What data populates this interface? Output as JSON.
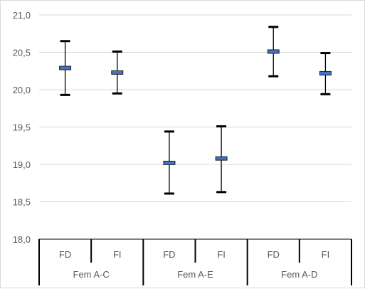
{
  "chart_data": {
    "type": "error-bar",
    "title": "",
    "xlabel": "",
    "ylabel": "",
    "ylim": [
      18.0,
      21.0
    ],
    "ytick_labels": [
      "18,0",
      "18,5",
      "19,0",
      "19,5",
      "20,0",
      "20,5",
      "21,0"
    ],
    "grid": true,
    "legend": "none",
    "groups": [
      {
        "label": "Fem A-C",
        "items": [
          {
            "label": "FD",
            "mean": 20.29,
            "low": 19.93,
            "high": 20.65
          },
          {
            "label": "FI",
            "mean": 20.23,
            "low": 19.95,
            "high": 20.51
          }
        ]
      },
      {
        "label": "Fem A-E",
        "items": [
          {
            "label": "FD",
            "mean": 19.02,
            "low": 18.61,
            "high": 19.44
          },
          {
            "label": "FI",
            "mean": 19.08,
            "low": 18.63,
            "high": 19.51
          }
        ]
      },
      {
        "label": "Fem A-D",
        "items": [
          {
            "label": "FD",
            "mean": 20.51,
            "low": 20.18,
            "high": 20.84
          },
          {
            "label": "FI",
            "mean": 20.22,
            "low": 19.94,
            "high": 20.49
          }
        ]
      }
    ],
    "colors": {
      "marker_fill": "#4472c4",
      "marker_stroke": "#1f1f1f",
      "whisker": "#000000",
      "grid": "#d9d9d9",
      "axis": "#000000"
    }
  }
}
